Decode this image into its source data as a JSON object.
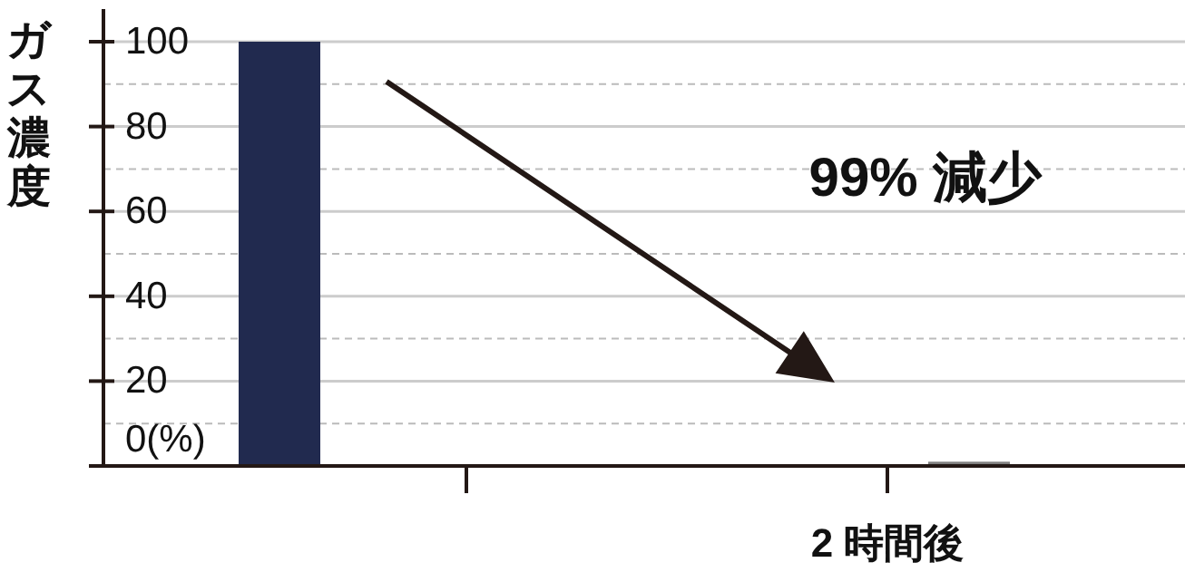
{
  "chart_data": {
    "type": "bar",
    "ylabel": "ガス濃度",
    "categories": [
      null,
      "2 時間後"
    ],
    "series": [
      {
        "colors": [
          "#212a4f",
          "#7f7f7f"
        ],
        "values": [
          100,
          1
        ]
      }
    ],
    "ylim": [
      0,
      100
    ],
    "yticks": [
      {
        "value": 0,
        "label": "0(%)"
      },
      20,
      40,
      60,
      80,
      100
    ],
    "grid": "y",
    "annotations": [
      "99% 減少"
    ]
  }
}
